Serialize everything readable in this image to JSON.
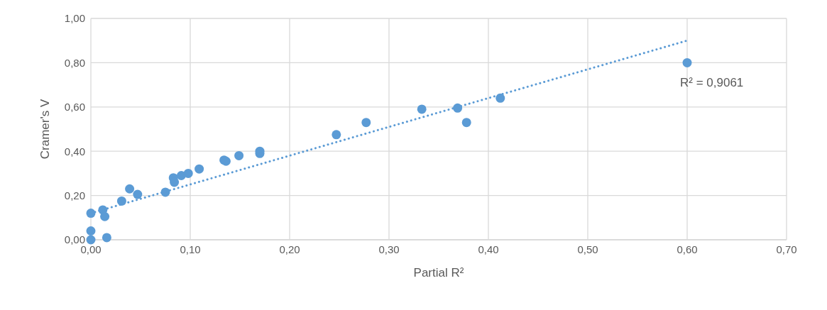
{
  "chart_data": {
    "type": "scatter",
    "xlabel": "Partial R²",
    "ylabel": "Cramer's V",
    "xlim": [
      0,
      0.7
    ],
    "xticks": [
      {
        "value": 0,
        "label": "0,00"
      },
      {
        "value": 0.1,
        "label": "0,10"
      },
      {
        "value": 0.2,
        "label": "0,20"
      },
      {
        "value": 0.3,
        "label": "0,30"
      },
      {
        "value": 0.4,
        "label": "0,40"
      },
      {
        "value": 0.5,
        "label": "0,50"
      },
      {
        "value": 0.6,
        "label": "0,60"
      },
      {
        "value": 0.7,
        "label": "0,70"
      }
    ],
    "ylim": [
      0,
      1
    ],
    "yticks": [
      {
        "value": 0,
        "label": "0,00"
      },
      {
        "value": 0.2,
        "label": "0,20"
      },
      {
        "value": 0.4,
        "label": "0,40"
      },
      {
        "value": 0.6,
        "label": "0,60"
      },
      {
        "value": 0.8,
        "label": "0,80"
      },
      {
        "value": 1,
        "label": "1,00"
      }
    ],
    "grid": true,
    "marker": "circle",
    "series": [
      {
        "color": "#5b9bd5",
        "x": [
          0,
          0,
          0,
          0.012,
          0.014,
          0.016,
          0.031,
          0.039,
          0.047,
          0.075,
          0.083,
          0.084,
          0.091,
          0.098,
          0.109,
          0.134,
          0.136,
          0.149,
          0.17,
          0.17,
          0.247,
          0.277,
          0.333,
          0.369,
          0.378,
          0.412,
          0.6
        ],
        "values": [
          0.12,
          0.04,
          0,
          0.135,
          0.105,
          0.01,
          0.175,
          0.23,
          0.205,
          0.215,
          0.28,
          0.26,
          0.29,
          0.3,
          0.32,
          0.36,
          0.355,
          0.38,
          0.4,
          0.39,
          0.475,
          0.53,
          0.59,
          0.595,
          0.53,
          0.64,
          0.8
        ]
      },
      {
        "type": "line",
        "color": "#5b9bd5",
        "line_style": "dotted",
        "marker": "none",
        "x": [
          0,
          0.6
        ],
        "values": [
          0.12,
          0.9
        ]
      }
    ],
    "annotations": [
      {
        "text": "R² = 0,9061",
        "x": 0.6,
        "y": 0.9
      }
    ]
  }
}
